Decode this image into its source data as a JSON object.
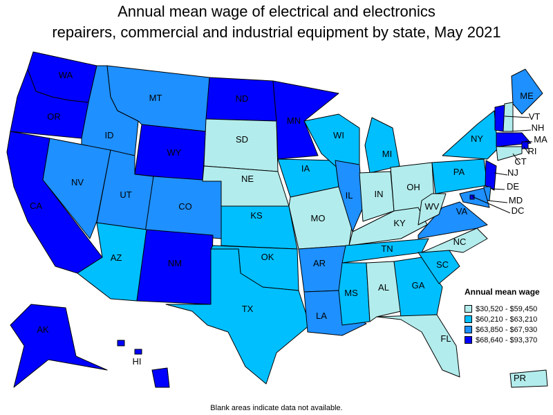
{
  "title_line1": "Annual mean wage of electrical and electronics",
  "title_line2": "repairers, commercial and industrial equipment by state, May 2021",
  "footnote": "Blank areas indicate data not available.",
  "legend": {
    "title": "Annual mean wage",
    "items": [
      {
        "label": "$30,520 - $59,450",
        "color": "#b3ecec"
      },
      {
        "label": "$60,210 - $63,210",
        "color": "#00bfff"
      },
      {
        "label": "$63,850 - $67,930",
        "color": "#1e90ff"
      },
      {
        "label": "$68,640 - $93,370",
        "color": "#0000ff"
      }
    ]
  },
  "states": [
    {
      "abbr": "WA",
      "bin": 3
    },
    {
      "abbr": "OR",
      "bin": 3
    },
    {
      "abbr": "CA",
      "bin": 3
    },
    {
      "abbr": "ID",
      "bin": 2
    },
    {
      "abbr": "NV",
      "bin": 2
    },
    {
      "abbr": "MT",
      "bin": 2
    },
    {
      "abbr": "WY",
      "bin": 3
    },
    {
      "abbr": "UT",
      "bin": 2
    },
    {
      "abbr": "CO",
      "bin": 2
    },
    {
      "abbr": "AZ",
      "bin": 1
    },
    {
      "abbr": "NM",
      "bin": 3
    },
    {
      "abbr": "ND",
      "bin": 3
    },
    {
      "abbr": "SD",
      "bin": 0
    },
    {
      "abbr": "NE",
      "bin": 0
    },
    {
      "abbr": "KS",
      "bin": 1
    },
    {
      "abbr": "OK",
      "bin": 1
    },
    {
      "abbr": "TX",
      "bin": 1
    },
    {
      "abbr": "MN",
      "bin": 3
    },
    {
      "abbr": "IA",
      "bin": 1
    },
    {
      "abbr": "MO",
      "bin": 0
    },
    {
      "abbr": "AR",
      "bin": 2
    },
    {
      "abbr": "LA",
      "bin": 2
    },
    {
      "abbr": "WI",
      "bin": 1
    },
    {
      "abbr": "IL",
      "bin": 2
    },
    {
      "abbr": "MI",
      "bin": 1
    },
    {
      "abbr": "IN",
      "bin": 0
    },
    {
      "abbr": "OH",
      "bin": 0
    },
    {
      "abbr": "KY",
      "bin": 0
    },
    {
      "abbr": "TN",
      "bin": 1
    },
    {
      "abbr": "MS",
      "bin": 1
    },
    {
      "abbr": "AL",
      "bin": 0
    },
    {
      "abbr": "GA",
      "bin": 1
    },
    {
      "abbr": "FL",
      "bin": 0
    },
    {
      "abbr": "SC",
      "bin": 1
    },
    {
      "abbr": "NC",
      "bin": 0
    },
    {
      "abbr": "VA",
      "bin": 2
    },
    {
      "abbr": "WV",
      "bin": 0
    },
    {
      "abbr": "PA",
      "bin": 1
    },
    {
      "abbr": "NY",
      "bin": 1
    },
    {
      "abbr": "ME",
      "bin": 2
    },
    {
      "abbr": "VT",
      "bin": 3
    },
    {
      "abbr": "NH",
      "bin": 0
    },
    {
      "abbr": "MA",
      "bin": 3
    },
    {
      "abbr": "RI",
      "bin": 3
    },
    {
      "abbr": "CT",
      "bin": 0
    },
    {
      "abbr": "NJ",
      "bin": 3
    },
    {
      "abbr": "DE",
      "bin": 2
    },
    {
      "abbr": "MD",
      "bin": 2
    },
    {
      "abbr": "DC",
      "bin": 3
    },
    {
      "abbr": "AK",
      "bin": 3
    },
    {
      "abbr": "HI",
      "bin": 3
    },
    {
      "abbr": "PR",
      "bin": 0
    }
  ]
}
